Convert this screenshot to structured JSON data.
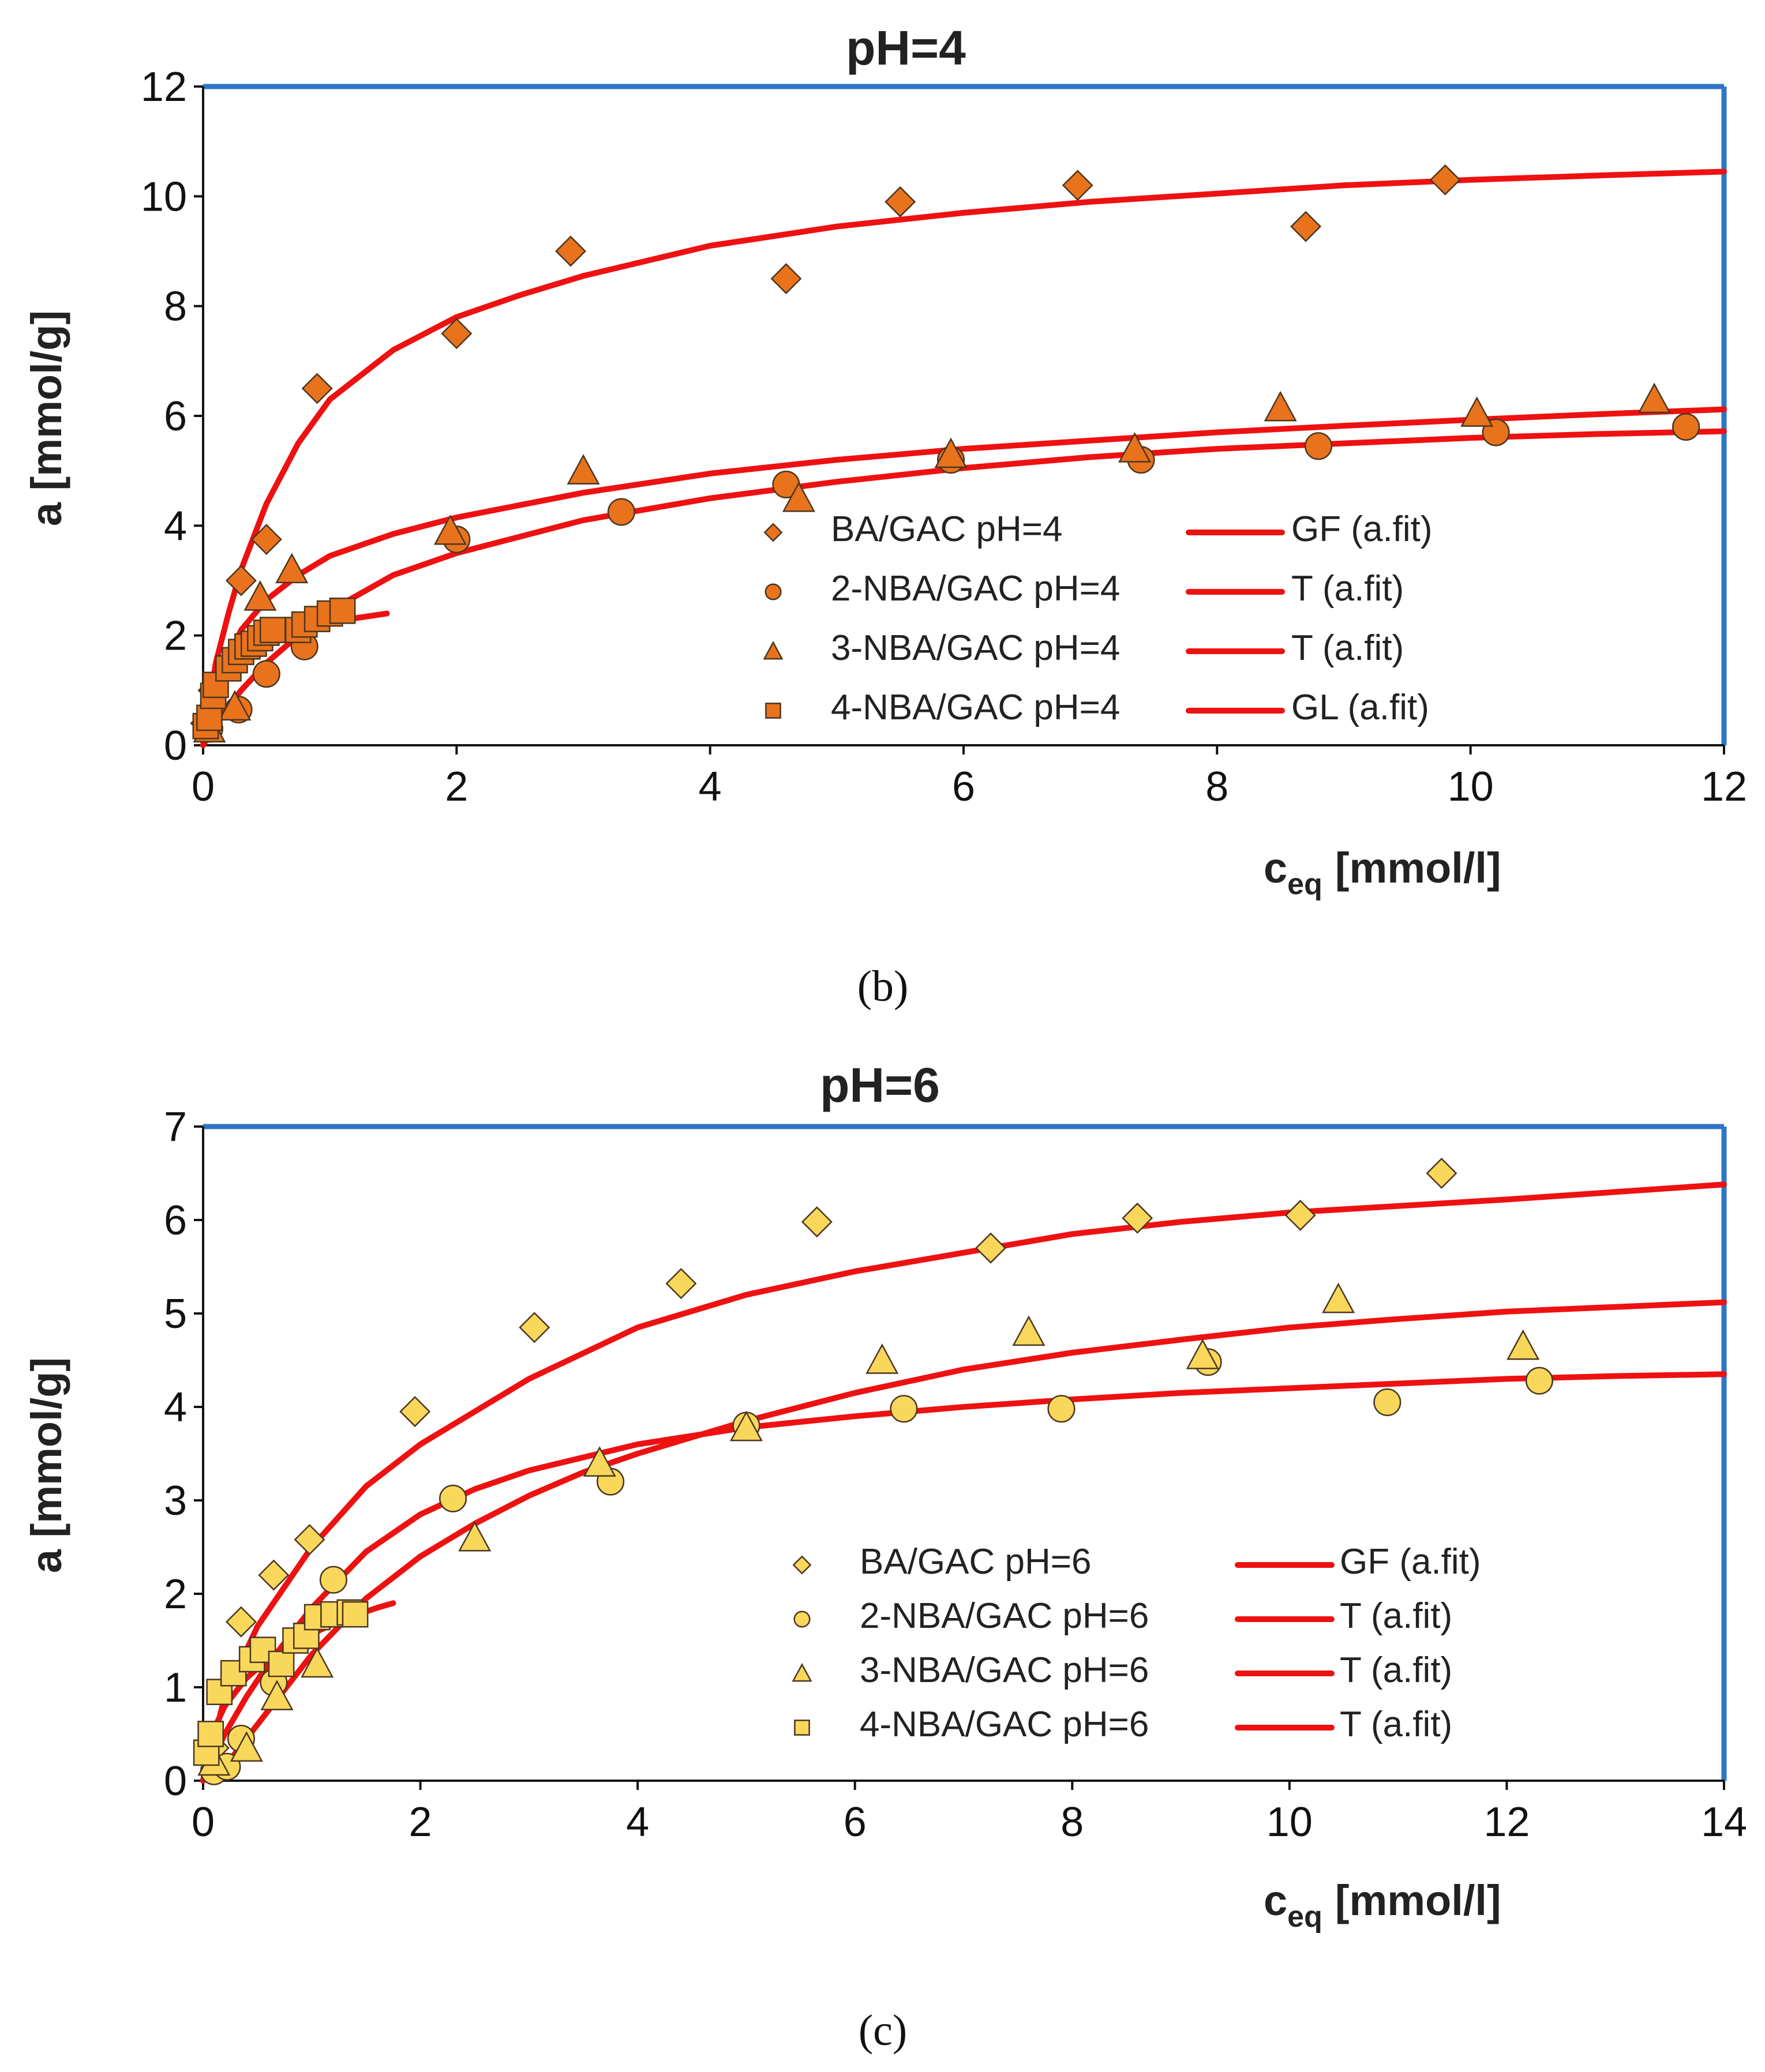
{
  "chart_data": [
    {
      "type": "scatter",
      "title": "pH=4",
      "caption": "(b)",
      "ylabel": "a [mmol/g]",
      "xlabel": "c",
      "xlabel_sub": "eq",
      "xlabel_unit": "[mmol/l]",
      "xlim": [
        0,
        12
      ],
      "ylim": [
        0,
        12
      ],
      "xticks": [
        "0",
        "2",
        "4",
        "6",
        "8",
        "10",
        "12"
      ],
      "yticks": [
        "0",
        "2",
        "4",
        "6",
        "8",
        "10",
        "12"
      ],
      "grid": false,
      "legend_placement": "center-right",
      "marker_color": "#E8731C",
      "fit_color": "#EE1111",
      "frame_color": "#2E75C8",
      "series": [
        {
          "name": "BA/GAC pH=4",
          "marker": "diamond",
          "points": [
            [
              0.02,
              0.4
            ],
            [
              0.08,
              1.0
            ],
            [
              0.3,
              3.0
            ],
            [
              0.5,
              3.75
            ],
            [
              0.9,
              6.5
            ],
            [
              2.0,
              7.5
            ],
            [
              2.9,
              9.0
            ],
            [
              4.6,
              8.5
            ],
            [
              5.5,
              9.9
            ],
            [
              6.9,
              10.2
            ],
            [
              8.7,
              9.45
            ],
            [
              9.8,
              10.3
            ]
          ]
        },
        {
          "name": "2-NBA/GAC pH=4",
          "marker": "circle",
          "points": [
            [
              0.05,
              0.3
            ],
            [
              0.28,
              0.65
            ],
            [
              0.5,
              1.3
            ],
            [
              0.8,
              1.8
            ],
            [
              2.0,
              3.75
            ],
            [
              3.3,
              4.25
            ],
            [
              4.6,
              4.75
            ],
            [
              5.9,
              5.2
            ],
            [
              7.4,
              5.2
            ],
            [
              8.8,
              5.45
            ],
            [
              10.2,
              5.7
            ],
            [
              11.7,
              5.8
            ]
          ]
        },
        {
          "name": "3-NBA/GAC pH=4",
          "marker": "triangle",
          "points": [
            [
              0.05,
              0.3
            ],
            [
              0.25,
              0.7
            ],
            [
              0.45,
              2.7
            ],
            [
              0.7,
              3.2
            ],
            [
              1.95,
              3.9
            ],
            [
              3.0,
              5.0
            ],
            [
              4.7,
              4.5
            ],
            [
              5.9,
              5.3
            ],
            [
              7.35,
              5.4
            ],
            [
              8.5,
              6.15
            ],
            [
              10.05,
              6.05
            ],
            [
              11.45,
              6.3
            ]
          ]
        },
        {
          "name": "4-NBA/GAC pH=4",
          "marker": "square",
          "points": [
            [
              0.02,
              0.35
            ],
            [
              0.05,
              0.5
            ],
            [
              0.08,
              0.9
            ],
            [
              0.1,
              1.1
            ],
            [
              0.2,
              1.4
            ],
            [
              0.25,
              1.55
            ],
            [
              0.3,
              1.7
            ],
            [
              0.35,
              1.8
            ],
            [
              0.4,
              1.85
            ],
            [
              0.45,
              1.95
            ],
            [
              0.5,
              2.05
            ],
            [
              0.55,
              2.1
            ],
            [
              0.75,
              2.1
            ],
            [
              0.8,
              2.2
            ],
            [
              0.9,
              2.3
            ],
            [
              1.0,
              2.4
            ],
            [
              1.1,
              2.45
            ]
          ]
        }
      ],
      "fits": [
        {
          "name": "GF (a.fit)",
          "points": [
            [
              0.0,
              0.0
            ],
            [
              0.1,
              1.5
            ],
            [
              0.2,
              2.4
            ],
            [
              0.3,
              3.2
            ],
            [
              0.5,
              4.4
            ],
            [
              0.75,
              5.5
            ],
            [
              1.0,
              6.3
            ],
            [
              1.5,
              7.2
            ],
            [
              2.0,
              7.8
            ],
            [
              2.5,
              8.2
            ],
            [
              3.0,
              8.55
            ],
            [
              4.0,
              9.1
            ],
            [
              5.0,
              9.45
            ],
            [
              6.0,
              9.7
            ],
            [
              7.0,
              9.9
            ],
            [
              8.0,
              10.05
            ],
            [
              9.0,
              10.2
            ],
            [
              10.0,
              10.3
            ],
            [
              11.0,
              10.38
            ],
            [
              12.0,
              10.45
            ]
          ]
        },
        {
          "name": "T (a.fit)",
          "points": [
            [
              0.0,
              0.0
            ],
            [
              0.1,
              0.4
            ],
            [
              0.3,
              1.0
            ],
            [
              0.5,
              1.5
            ],
            [
              0.75,
              2.0
            ],
            [
              1.0,
              2.45
            ],
            [
              1.5,
              3.1
            ],
            [
              2.0,
              3.5
            ],
            [
              3.0,
              4.1
            ],
            [
              4.0,
              4.5
            ],
            [
              5.0,
              4.8
            ],
            [
              6.0,
              5.05
            ],
            [
              7.0,
              5.25
            ],
            [
              8.0,
              5.4
            ],
            [
              9.0,
              5.5
            ],
            [
              10.0,
              5.6
            ],
            [
              11.0,
              5.67
            ],
            [
              12.0,
              5.72
            ]
          ]
        },
        {
          "name": "T (a.fit)",
          "points": [
            [
              0.0,
              0.0
            ],
            [
              0.1,
              1.1
            ],
            [
              0.3,
              2.1
            ],
            [
              0.5,
              2.65
            ],
            [
              0.75,
              3.1
            ],
            [
              1.0,
              3.45
            ],
            [
              1.5,
              3.85
            ],
            [
              2.0,
              4.15
            ],
            [
              3.0,
              4.6
            ],
            [
              4.0,
              4.95
            ],
            [
              5.0,
              5.2
            ],
            [
              6.0,
              5.4
            ],
            [
              7.0,
              5.55
            ],
            [
              8.0,
              5.7
            ],
            [
              9.0,
              5.82
            ],
            [
              10.0,
              5.93
            ],
            [
              11.0,
              6.03
            ],
            [
              12.0,
              6.12
            ]
          ]
        },
        {
          "name": "GL (a.fit)",
          "points": [
            [
              0.0,
              0.0
            ],
            [
              0.05,
              0.55
            ],
            [
              0.1,
              0.9
            ],
            [
              0.2,
              1.35
            ],
            [
              0.3,
              1.6
            ],
            [
              0.5,
              1.9
            ],
            [
              0.7,
              2.08
            ],
            [
              0.9,
              2.2
            ],
            [
              1.1,
              2.28
            ],
            [
              1.3,
              2.35
            ],
            [
              1.45,
              2.4
            ]
          ]
        }
      ]
    },
    {
      "type": "scatter",
      "title": "pH=6",
      "caption": "(c)",
      "ylabel": "a [mmol/g]",
      "xlabel": "c",
      "xlabel_sub": "eq",
      "xlabel_unit": "[mmol/l]",
      "xlim": [
        0,
        14
      ],
      "ylim": [
        0,
        7
      ],
      "xticks": [
        "0",
        "2",
        "4",
        "6",
        "8",
        "10",
        "12",
        "14"
      ],
      "yticks": [
        "0",
        "1",
        "2",
        "3",
        "4",
        "5",
        "6",
        "7"
      ],
      "grid": false,
      "legend_placement": "center-right",
      "marker_color": "#F9D75A",
      "fit_color": "#EE1111",
      "frame_color": "#2E75C8",
      "series": [
        {
          "name": "BA/GAC pH=6",
          "marker": "diamond",
          "points": [
            [
              0.1,
              0.35
            ],
            [
              0.35,
              1.7
            ],
            [
              0.65,
              2.2
            ],
            [
              0.98,
              2.58
            ],
            [
              1.95,
              3.95
            ],
            [
              3.05,
              4.85
            ],
            [
              4.4,
              5.32
            ],
            [
              5.65,
              5.98
            ],
            [
              7.25,
              5.7
            ],
            [
              8.6,
              6.02
            ],
            [
              10.1,
              6.05
            ],
            [
              11.4,
              6.5
            ]
          ]
        },
        {
          "name": "2-NBA/GAC pH=6",
          "marker": "circle",
          "points": [
            [
              0.1,
              0.1
            ],
            [
              0.22,
              0.15
            ],
            [
              0.35,
              0.45
            ],
            [
              0.65,
              1.05
            ],
            [
              1.2,
              2.15
            ],
            [
              2.3,
              3.02
            ],
            [
              3.75,
              3.2
            ],
            [
              5.0,
              3.8
            ],
            [
              6.45,
              3.98
            ],
            [
              7.9,
              3.98
            ],
            [
              9.25,
              4.48
            ],
            [
              10.9,
              4.05
            ],
            [
              12.3,
              4.28
            ]
          ]
        },
        {
          "name": "3-NBA/GAC pH=6",
          "marker": "triangle",
          "points": [
            [
              0.1,
              0.2
            ],
            [
              0.4,
              0.35
            ],
            [
              0.68,
              0.9
            ],
            [
              1.05,
              1.25
            ],
            [
              2.5,
              2.6
            ],
            [
              3.65,
              3.4
            ],
            [
              5.0,
              3.78
            ],
            [
              6.25,
              4.5
            ],
            [
              7.6,
              4.8
            ],
            [
              9.2,
              4.55
            ],
            [
              10.45,
              5.15
            ],
            [
              12.15,
              4.65
            ]
          ]
        },
        {
          "name": "4-NBA/GAC pH=6",
          "marker": "square",
          "points": [
            [
              0.03,
              0.3
            ],
            [
              0.07,
              0.5
            ],
            [
              0.15,
              0.95
            ],
            [
              0.28,
              1.15
            ],
            [
              0.45,
              1.3
            ],
            [
              0.55,
              1.4
            ],
            [
              0.72,
              1.25
            ],
            [
              0.85,
              1.5
            ],
            [
              0.95,
              1.55
            ],
            [
              1.05,
              1.75
            ],
            [
              1.2,
              1.78
            ],
            [
              1.35,
              1.8
            ],
            [
              1.4,
              1.78
            ]
          ]
        }
      ],
      "fits": [
        {
          "name": "GF (a.fit)",
          "points": [
            [
              0.0,
              0.0
            ],
            [
              0.2,
              0.9
            ],
            [
              0.5,
              1.65
            ],
            [
              1.0,
              2.5
            ],
            [
              1.5,
              3.15
            ],
            [
              2.0,
              3.6
            ],
            [
              3.0,
              4.3
            ],
            [
              4.0,
              4.85
            ],
            [
              5.0,
              5.2
            ],
            [
              6.0,
              5.45
            ],
            [
              7.0,
              5.65
            ],
            [
              8.0,
              5.85
            ],
            [
              9.0,
              5.98
            ],
            [
              10.0,
              6.08
            ],
            [
              11.0,
              6.15
            ],
            [
              12.0,
              6.22
            ],
            [
              13.0,
              6.3
            ],
            [
              14.0,
              6.38
            ]
          ]
        },
        {
          "name": "T (a.fit)",
          "points": [
            [
              0.0,
              0.0
            ],
            [
              0.2,
              0.5
            ],
            [
              0.4,
              0.9
            ],
            [
              0.6,
              1.25
            ],
            [
              0.8,
              1.55
            ],
            [
              1.0,
              1.85
            ],
            [
              1.5,
              2.45
            ],
            [
              2.0,
              2.85
            ],
            [
              2.5,
              3.12
            ],
            [
              3.0,
              3.32
            ],
            [
              4.0,
              3.6
            ],
            [
              5.0,
              3.78
            ],
            [
              6.0,
              3.9
            ],
            [
              7.0,
              4.0
            ],
            [
              8.0,
              4.08
            ],
            [
              9.0,
              4.15
            ],
            [
              10.0,
              4.2
            ],
            [
              11.0,
              4.25
            ],
            [
              12.0,
              4.3
            ],
            [
              13.0,
              4.33
            ],
            [
              14.0,
              4.35
            ]
          ]
        },
        {
          "name": "T (a.fit)",
          "points": [
            [
              0.1,
              0.0
            ],
            [
              0.4,
              0.45
            ],
            [
              0.7,
              0.9
            ],
            [
              1.0,
              1.35
            ],
            [
              1.5,
              1.95
            ],
            [
              2.0,
              2.4
            ],
            [
              2.5,
              2.75
            ],
            [
              3.0,
              3.05
            ],
            [
              3.5,
              3.3
            ],
            [
              4.0,
              3.5
            ],
            [
              5.0,
              3.85
            ],
            [
              6.0,
              4.15
            ],
            [
              7.0,
              4.4
            ],
            [
              8.0,
              4.58
            ],
            [
              9.0,
              4.72
            ],
            [
              10.0,
              4.85
            ],
            [
              11.0,
              4.94
            ],
            [
              12.0,
              5.02
            ],
            [
              13.0,
              5.07
            ],
            [
              14.0,
              5.12
            ]
          ]
        },
        {
          "name": "T (a.fit)",
          "points": [
            [
              0.0,
              0.0
            ],
            [
              0.05,
              0.35
            ],
            [
              0.1,
              0.55
            ],
            [
              0.2,
              0.8
            ],
            [
              0.4,
              1.1
            ],
            [
              0.6,
              1.3
            ],
            [
              0.8,
              1.45
            ],
            [
              1.0,
              1.57
            ],
            [
              1.2,
              1.68
            ],
            [
              1.4,
              1.77
            ],
            [
              1.6,
              1.85
            ],
            [
              1.75,
              1.9
            ]
          ]
        }
      ]
    }
  ]
}
